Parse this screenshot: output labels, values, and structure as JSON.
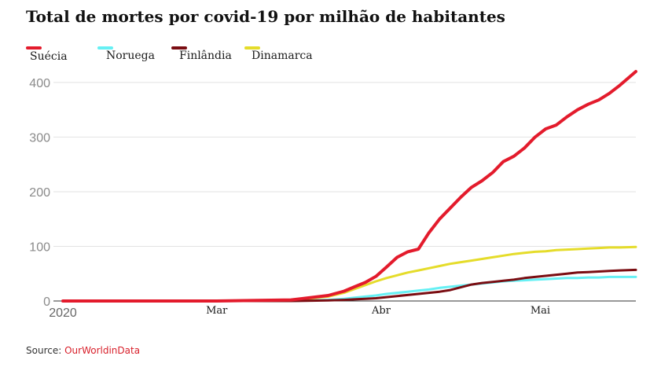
{
  "title": "Total de mortes por covid-19 por milhão de habitantes",
  "legend": [
    {
      "name": "Suécia",
      "color": "#e31b2c"
    },
    {
      "name": "Noruega",
      "color": "#66f0f4"
    },
    {
      "name": "Finlândia",
      "color": "#7a0d12"
    },
    {
      "name": "Dinamarca",
      "color": "#e5dc2a"
    }
  ],
  "source": {
    "label": "Source:",
    "link": "OurWorldinData"
  },
  "chart_data": {
    "type": "line",
    "xlabel": "",
    "ylabel": "",
    "ylim": [
      0,
      420
    ],
    "yticks": [
      0,
      100,
      200,
      300,
      400
    ],
    "y_gridlines": true,
    "xlim": [
      "2020-02-01",
      "2020-05-19"
    ],
    "x_tick_labels": [
      {
        "date": "2020-02-01",
        "label": "2020"
      },
      {
        "date": "2020-03-01",
        "label": "Mar"
      },
      {
        "date": "2020-04-01",
        "label": "Abr"
      },
      {
        "date": "2020-05-01",
        "label": "Mai"
      }
    ],
    "legend_position": "top-left",
    "x": [
      "2020-02-01",
      "2020-03-01",
      "2020-03-15",
      "2020-03-22",
      "2020-03-25",
      "2020-03-27",
      "2020-03-29",
      "2020-03-31",
      "2020-04-02",
      "2020-04-04",
      "2020-04-06",
      "2020-04-08",
      "2020-04-10",
      "2020-04-12",
      "2020-04-14",
      "2020-04-16",
      "2020-04-18",
      "2020-04-20",
      "2020-04-22",
      "2020-04-24",
      "2020-04-26",
      "2020-04-28",
      "2020-04-30",
      "2020-05-02",
      "2020-05-04",
      "2020-05-06",
      "2020-05-08",
      "2020-05-10",
      "2020-05-12",
      "2020-05-14",
      "2020-05-16",
      "2020-05-19"
    ],
    "series": [
      {
        "name": "Suécia",
        "color": "#e31b2c",
        "values": [
          0,
          0,
          2,
          10,
          18,
          26,
          34,
          45,
          62,
          80,
          90,
          95,
          125,
          150,
          170,
          190,
          208,
          220,
          235,
          255,
          265,
          280,
          300,
          315,
          322,
          337,
          350,
          360,
          368,
          380,
          395,
          420
        ]
      },
      {
        "name": "Noruega",
        "color": "#66f0f4",
        "values": [
          0,
          0,
          0,
          2,
          4,
          6,
          8,
          10,
          13,
          15,
          17,
          19,
          21,
          24,
          26,
          28,
          30,
          32,
          34,
          36,
          37,
          38,
          39,
          40,
          41,
          42,
          42,
          43,
          43,
          44,
          44,
          44
        ]
      },
      {
        "name": "Finlândia",
        "color": "#7a0d12",
        "values": [
          0,
          0,
          0,
          1,
          2,
          3,
          4,
          5,
          7,
          9,
          11,
          13,
          15,
          17,
          20,
          25,
          30,
          33,
          35,
          37,
          39,
          42,
          44,
          46,
          48,
          50,
          52,
          53,
          54,
          55,
          56,
          57
        ]
      },
      {
        "name": "Dinamarca",
        "color": "#e5dc2a",
        "values": [
          0,
          0,
          1,
          8,
          15,
          22,
          29,
          36,
          42,
          47,
          52,
          56,
          60,
          64,
          68,
          71,
          74,
          77,
          80,
          83,
          86,
          88,
          90,
          91,
          93,
          94,
          95,
          96,
          97,
          98,
          98,
          99
        ]
      }
    ]
  }
}
